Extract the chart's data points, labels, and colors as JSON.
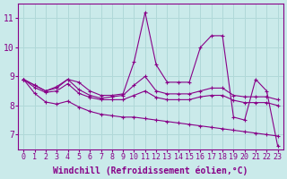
{
  "xlabel": "Windchill (Refroidissement éolien,°C)",
  "background_color": "#caeaea",
  "grid_color": "#b0d8d8",
  "line_color": "#880088",
  "x": [
    0,
    1,
    2,
    3,
    4,
    5,
    6,
    7,
    8,
    9,
    10,
    11,
    12,
    13,
    14,
    15,
    16,
    17,
    18,
    19,
    20,
    21,
    22,
    23
  ],
  "series": [
    [
      8.9,
      8.7,
      8.5,
      8.6,
      8.9,
      8.8,
      8.5,
      8.35,
      8.35,
      8.4,
      9.5,
      11.2,
      9.4,
      8.8,
      8.8,
      8.8,
      10.0,
      10.4,
      10.4,
      7.6,
      7.5,
      8.9,
      8.5,
      6.6
    ],
    [
      8.9,
      8.7,
      8.5,
      8.65,
      8.9,
      8.55,
      8.35,
      8.25,
      8.3,
      8.35,
      8.7,
      9.0,
      8.5,
      8.4,
      8.4,
      8.4,
      8.5,
      8.6,
      8.6,
      8.35,
      8.3,
      8.3,
      8.3,
      8.2
    ],
    [
      8.9,
      8.62,
      8.45,
      8.5,
      8.75,
      8.42,
      8.28,
      8.2,
      8.2,
      8.2,
      8.35,
      8.5,
      8.28,
      8.2,
      8.2,
      8.2,
      8.3,
      8.35,
      8.35,
      8.18,
      8.1,
      8.1,
      8.1,
      8.0
    ],
    [
      8.9,
      8.42,
      8.12,
      8.05,
      8.15,
      7.95,
      7.8,
      7.7,
      7.65,
      7.6,
      7.6,
      7.55,
      7.5,
      7.45,
      7.4,
      7.35,
      7.3,
      7.25,
      7.2,
      7.15,
      7.1,
      7.05,
      7.0,
      6.95
    ]
  ],
  "ylim": [
    6.5,
    11.5
  ],
  "yticks": [
    7,
    8,
    9,
    10,
    11
  ],
  "xlim": [
    -0.5,
    23.5
  ],
  "xticks": [
    0,
    1,
    2,
    3,
    4,
    5,
    6,
    7,
    8,
    9,
    10,
    11,
    12,
    13,
    14,
    15,
    16,
    17,
    18,
    19,
    20,
    21,
    22,
    23
  ],
  "fontsize_xlabel": 7,
  "fontsize_yticks": 7,
  "fontsize_xticks": 6
}
